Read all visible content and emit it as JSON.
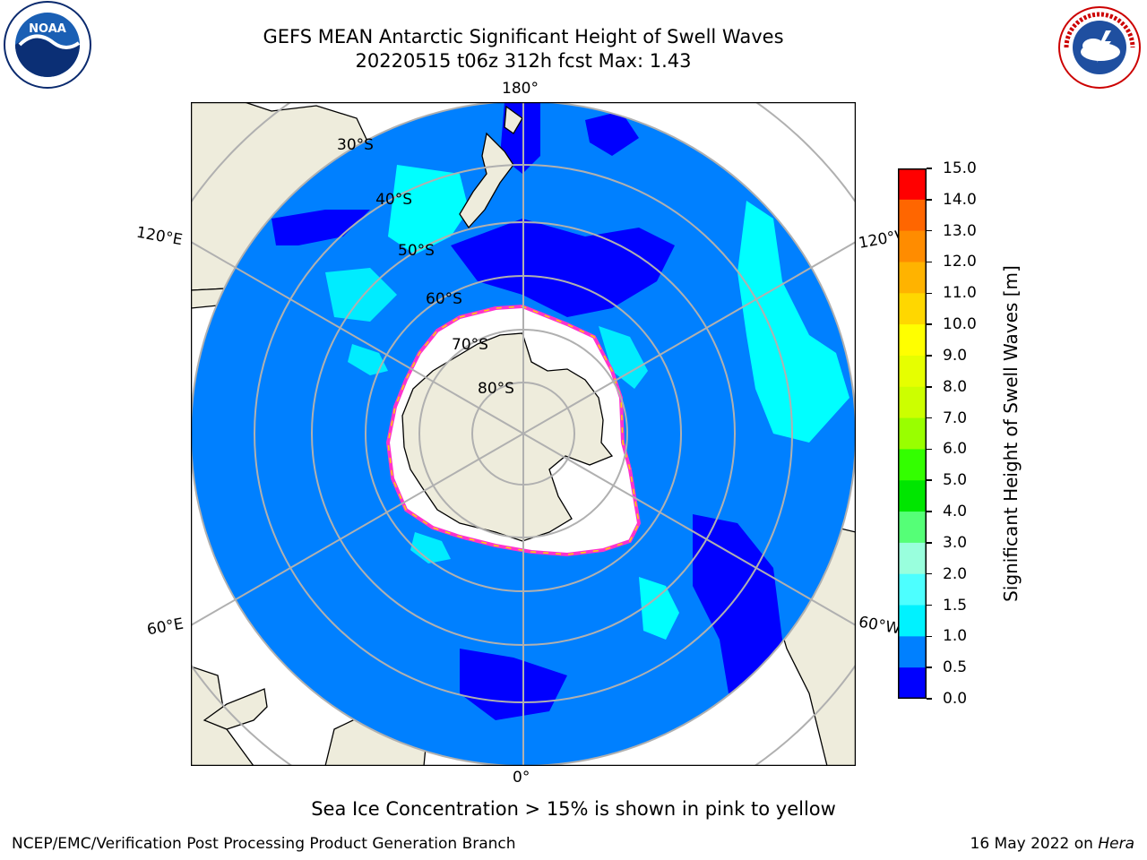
{
  "header": {
    "title_line1": "GEFS MEAN Antarctic Significant Height of Swell Waves",
    "title_line2": "20220515 t06z 312h fcst   Max: 1.43"
  },
  "logos": {
    "left": "noaa-logo",
    "right": "national-weather-service-logo",
    "left_text": "NOAA",
    "right_text": "NATIONAL WEATHER SERVICE"
  },
  "map": {
    "projection": "south-polar-stereographic",
    "longitude_labels": {
      "top": "180°",
      "upper_left": "120°E",
      "upper_right": "120°W",
      "lower_left": "60°E",
      "lower_right": "60°W",
      "bottom": "0°"
    },
    "latitude_labels": [
      "30°S",
      "40°S",
      "50°S",
      "60°S",
      "70°S",
      "80°S"
    ],
    "colors": {
      "ocean_main": "#0080ff",
      "ocean_low": "#0000ff",
      "swell_mid": "#00ffff",
      "land": "#eeecdc",
      "sea_ice": "#ffffff",
      "ice_edge": "#ff33cc",
      "graticule": "#b0b0b0"
    }
  },
  "colorbar": {
    "label": "Significant Height of Swell Waves [m]",
    "ticks": [
      "15.0",
      "14.0",
      "13.0",
      "12.0",
      "11.0",
      "10.0",
      "9.0",
      "8.0",
      "7.0",
      "6.0",
      "5.0",
      "4.0",
      "3.0",
      "2.0",
      "1.5",
      "1.0",
      "0.5",
      "0.0"
    ],
    "colors": [
      "#ff0000",
      "#ff3300",
      "#ff6600",
      "#ff8c00",
      "#ffb300",
      "#ffd700",
      "#ffff00",
      "#e6ff00",
      "#ccff00",
      "#99ff00",
      "#33ff00",
      "#00e600",
      "#55ff77",
      "#99ffdd",
      "#4dffff",
      "#00f2ff",
      "#0080ff",
      "#0000ff"
    ]
  },
  "footer": {
    "note": "Sea Ice Concentration > 15% is shown in pink to yellow",
    "credit": "NCEP/EMC/Verification Post Processing Product Generation Branch",
    "date_prefix": "16 May 2022 on ",
    "machine": "Hera"
  }
}
